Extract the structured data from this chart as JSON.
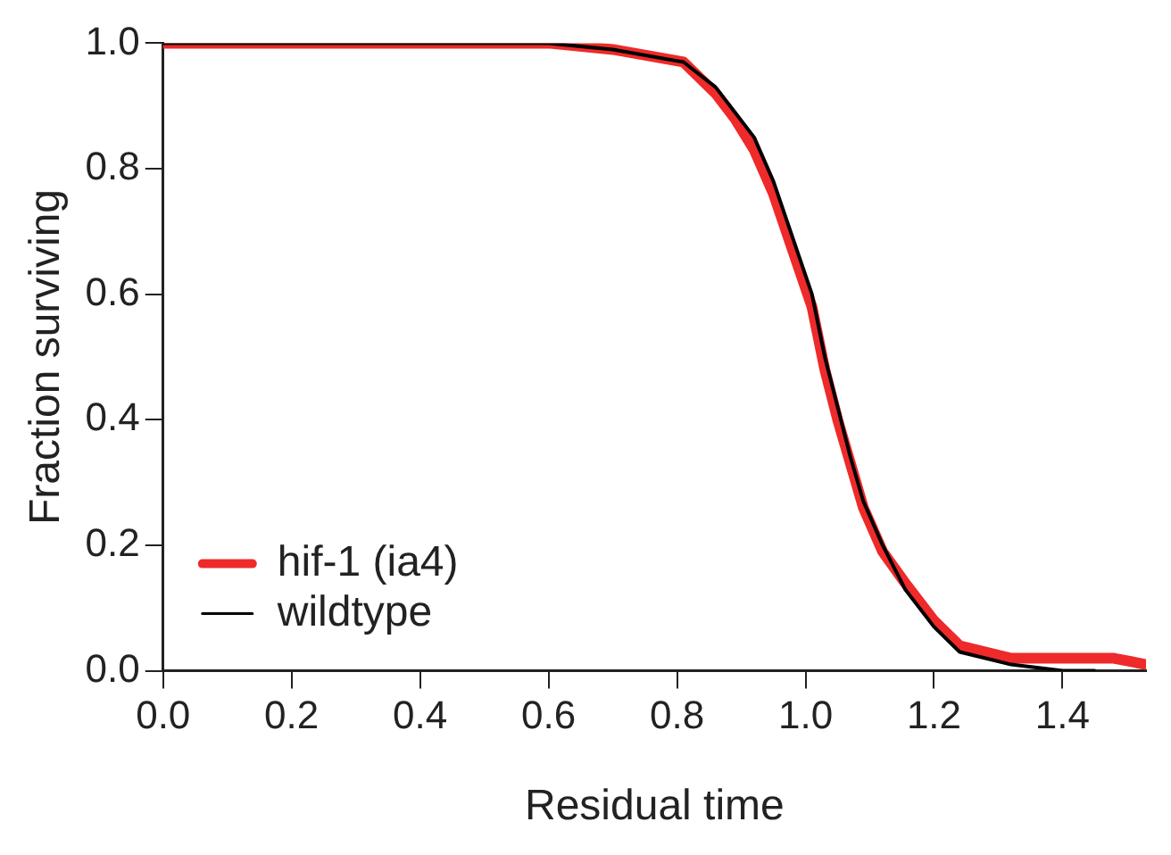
{
  "chart_data": {
    "type": "line",
    "xlabel": "Residual time",
    "ylabel": "Fraction surviving",
    "xlim": [
      0,
      1.53
    ],
    "ylim": [
      0,
      1
    ],
    "xticks": [
      {
        "value": 0,
        "label": "0.0"
      },
      0.2,
      0.4,
      0.6,
      0.8,
      {
        "value": 1,
        "label": "1.0"
      },
      1.2,
      1.4
    ],
    "yticks": [
      {
        "value": 0,
        "label": "0.0"
      },
      0.2,
      0.4,
      0.6,
      0.8,
      {
        "value": 1,
        "label": "1.0"
      }
    ],
    "legend": "bottom left",
    "marker": "none",
    "line_style": "solid",
    "series": [
      {
        "name": "hif-1 (ia4)",
        "color": "#ee2a2a",
        "x": [
          0,
          0.3,
          0.6,
          0.7,
          0.81,
          0.86,
          0.89,
          0.92,
          0.95,
          0.98,
          1.01,
          1.03,
          1.05,
          1.07,
          1.09,
          1.12,
          1.155,
          1.2,
          1.24,
          1.28,
          1.32,
          1.4,
          1.48,
          1.53
        ],
        "values": [
          1,
          1,
          1,
          0.99,
          0.97,
          0.92,
          0.88,
          0.83,
          0.76,
          0.67,
          0.58,
          0.48,
          0.4,
          0.33,
          0.26,
          0.19,
          0.14,
          0.08,
          0.04,
          0.03,
          0.02,
          0.02,
          0.02,
          0.01
        ]
      },
      {
        "name": "wildtype",
        "color": "#000000",
        "x": [
          0,
          0.3,
          0.6,
          0.7,
          0.81,
          0.86,
          0.89,
          0.92,
          0.95,
          0.98,
          1.01,
          1.03,
          1.05,
          1.07,
          1.09,
          1.12,
          1.155,
          1.2,
          1.24,
          1.28,
          1.32,
          1.4,
          1.45
        ],
        "values": [
          1,
          1,
          1,
          0.99,
          0.97,
          0.93,
          0.89,
          0.85,
          0.78,
          0.69,
          0.6,
          0.5,
          0.42,
          0.34,
          0.27,
          0.2,
          0.13,
          0.07,
          0.03,
          0.02,
          0.01,
          0,
          0
        ]
      }
    ]
  }
}
